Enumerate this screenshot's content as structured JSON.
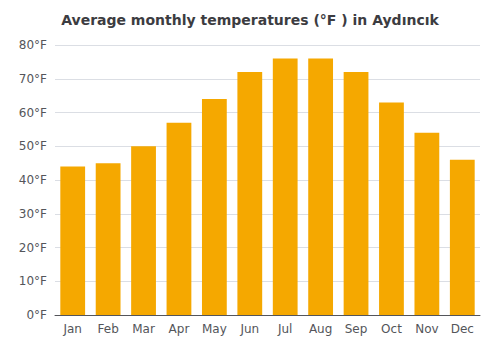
{
  "chart_data": {
    "type": "bar",
    "title": "Average monthly temperatures (°F ) in Aydıncık",
    "categories": [
      "Jan",
      "Feb",
      "Mar",
      "Apr",
      "May",
      "Jun",
      "Jul",
      "Aug",
      "Sep",
      "Oct",
      "Nov",
      "Dec"
    ],
    "values": [
      44,
      45,
      50,
      57,
      64,
      72,
      76,
      76,
      72,
      63,
      54,
      46
    ],
    "color": "#F5A800",
    "ylim": [
      0,
      80
    ],
    "yticks": [
      {
        "value": 0,
        "label": "0°F"
      },
      {
        "value": 10,
        "label": "10°F"
      },
      {
        "value": 20,
        "label": "20°F"
      },
      {
        "value": 30,
        "label": "30°F"
      },
      {
        "value": 40,
        "label": "40°F"
      },
      {
        "value": 50,
        "label": "50°F"
      },
      {
        "value": 60,
        "label": "60°F"
      },
      {
        "value": 70,
        "label": "70°F"
      },
      {
        "value": 80,
        "label": "80°F"
      }
    ],
    "grid": true
  }
}
